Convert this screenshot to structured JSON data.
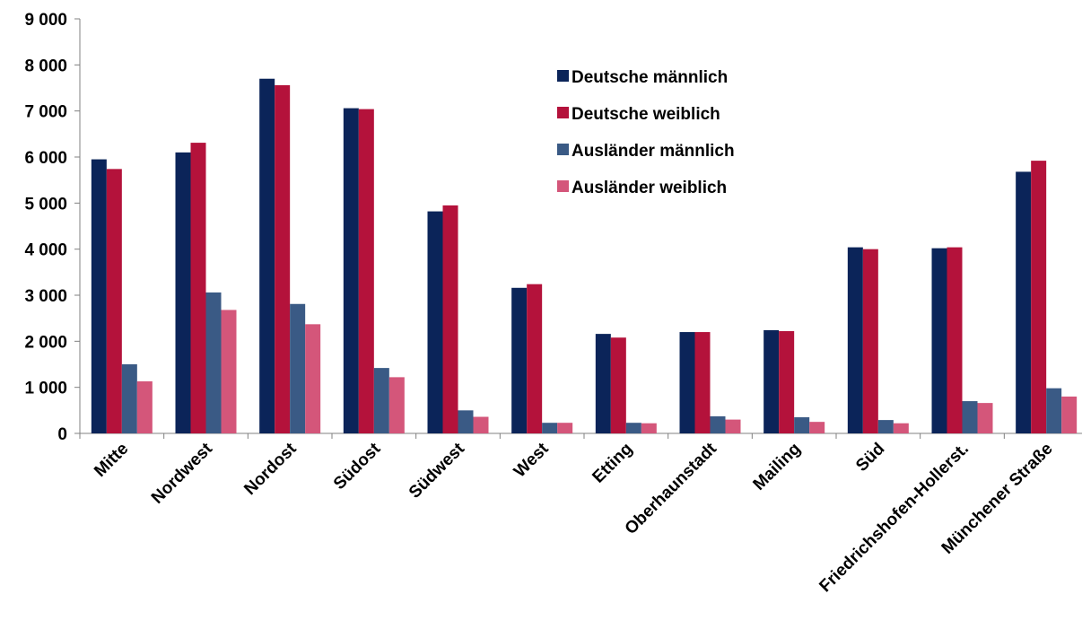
{
  "chart_data": {
    "type": "bar",
    "title": "",
    "xlabel": "",
    "ylabel": "",
    "ylim": [
      0,
      9000
    ],
    "yticks": [
      0,
      1000,
      2000,
      3000,
      4000,
      5000,
      6000,
      7000,
      8000,
      9000
    ],
    "ytick_labels": [
      "0",
      "1 000",
      "2 000",
      "3 000",
      "4 000",
      "5 000",
      "6 000",
      "7 000",
      "8 000",
      "9 000"
    ],
    "grid": false,
    "legend_position": "top-center",
    "categories": [
      "Mitte",
      "Nordwest",
      "Nordost",
      "Südost",
      "Südwest",
      "West",
      "Etting",
      "Oberhaunstadt",
      "Mailing",
      "Süd",
      "Friedrichshofen-Hollerst.",
      "Münchener Straße"
    ],
    "series": [
      {
        "name": "Deutsche männlich",
        "color": "#0b2459",
        "values": [
          5950,
          6100,
          7700,
          7060,
          4820,
          3160,
          2160,
          2200,
          2240,
          4040,
          4020,
          5680
        ]
      },
      {
        "name": "Deutsche weiblich",
        "color": "#b4123b",
        "values": [
          5740,
          6310,
          7560,
          7040,
          4950,
          3240,
          2080,
          2200,
          2220,
          4000,
          4040,
          5920
        ]
      },
      {
        "name": "Ausländer männlich",
        "color": "#3a5a85",
        "values": [
          1500,
          3060,
          2810,
          1420,
          500,
          230,
          230,
          370,
          350,
          290,
          700,
          980
        ]
      },
      {
        "name": "Ausländer weiblich",
        "color": "#d4567a",
        "values": [
          1130,
          2680,
          2370,
          1220,
          360,
          230,
          220,
          300,
          250,
          220,
          660,
          800
        ]
      }
    ]
  }
}
